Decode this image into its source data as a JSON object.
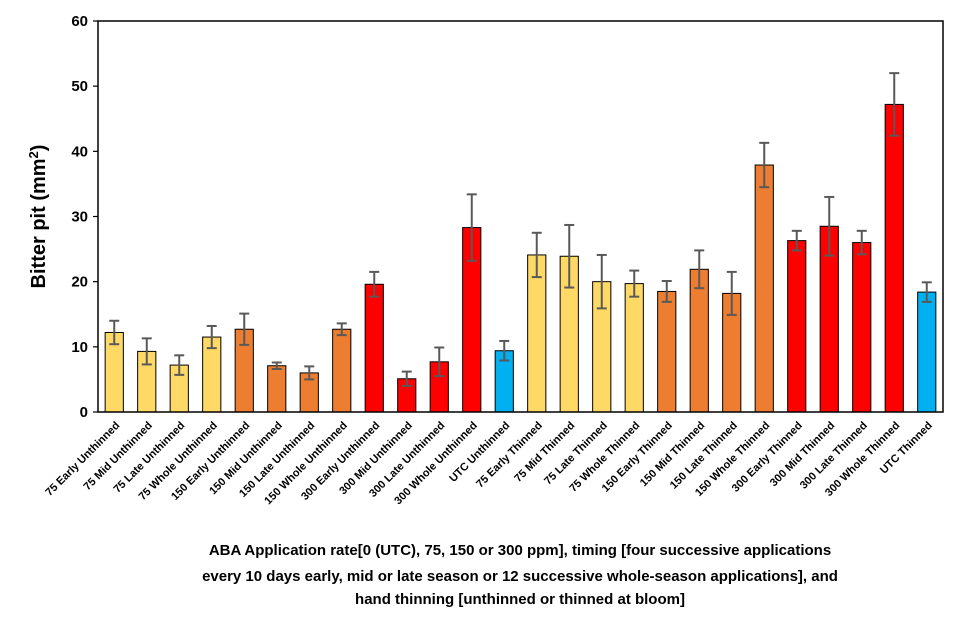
{
  "chart_data": {
    "type": "bar",
    "title": "",
    "ylabel_main": "Bitter pit (mm",
    "ylabel_sup": "2",
    "ylabel_end": ")",
    "xlabel_lines": [
      "ABA Application rate[0 (UTC), 75, 150 or 300 ppm], timing [four successive applications",
      "every 10 days early, mid or late season or 12 successive whole-season applications], and",
      "hand thinning [unthinned or thinned at bloom]"
    ],
    "ylim": [
      0,
      60
    ],
    "yticks": [
      0,
      10,
      20,
      30,
      40,
      50,
      60
    ],
    "grid": false,
    "legend": "none",
    "colors": {
      "r75": "#FFD966",
      "r150": "#ED7D31",
      "r300": "#FF0000",
      "utc": "#00B0F0",
      "error_bar": "#595959"
    },
    "categories": [
      "75 Early Unthinned",
      "75 Mid Unthinned",
      "75 Late Unthinned",
      "75 Whole Unthinned",
      "150 Early Unthinned",
      "150 Mid Unthinned",
      "150 Late Unthinned",
      "150 Whole Unthinned",
      "300 Early Unthinned",
      "300 Mid Unthinned",
      "300 Late Unthinned",
      "300 Whole Unthinned",
      "UTC Unthinned",
      "75 Early Thinned",
      "75 Mid Thinned",
      "75 Late Thinned",
      "75 Whole Thinned",
      "150 Early Thinned",
      "150 Mid Thinned",
      "150 Late Thinned",
      "150 Whole Thinned",
      "300 Early Thinned",
      "300 Mid Thinned",
      "300 Late Thinned",
      "300 Whole Thinned",
      "UTC Thinned"
    ],
    "values": [
      12.2,
      9.3,
      7.2,
      11.5,
      12.7,
      7.1,
      6.0,
      12.7,
      19.6,
      5.1,
      7.7,
      28.3,
      9.4,
      24.1,
      23.9,
      20.0,
      19.7,
      18.5,
      21.9,
      18.2,
      37.9,
      26.3,
      28.5,
      26.0,
      47.2,
      18.4
    ],
    "errors": [
      1.8,
      2.0,
      1.5,
      1.7,
      2.4,
      0.5,
      1.0,
      0.9,
      1.9,
      1.1,
      2.2,
      5.1,
      1.5,
      3.4,
      4.8,
      4.1,
      2.0,
      1.6,
      2.9,
      3.3,
      3.4,
      1.5,
      4.5,
      1.8,
      4.8,
      1.5
    ],
    "color_groups": [
      "r75",
      "r75",
      "r75",
      "r75",
      "r150",
      "r150",
      "r150",
      "r150",
      "r300",
      "r300",
      "r300",
      "r300",
      "utc",
      "r75",
      "r75",
      "r75",
      "r75",
      "r150",
      "r150",
      "r150",
      "r150",
      "r300",
      "r300",
      "r300",
      "r300",
      "utc"
    ]
  }
}
